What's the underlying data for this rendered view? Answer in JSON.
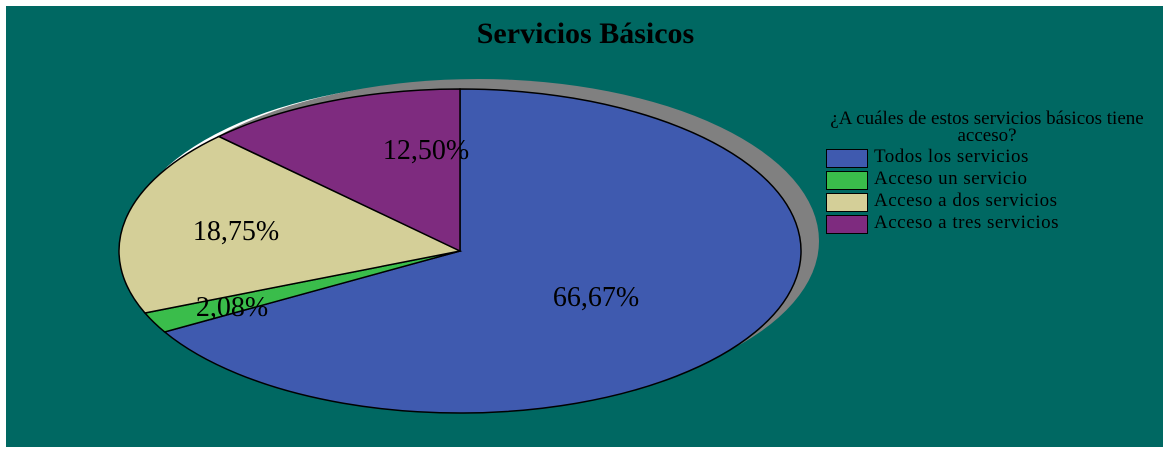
{
  "chart_data": {
    "type": "pie",
    "title": "Servicios Básicos",
    "legend_title": "¿A cuáles de estos servicios básicos tiene acceso?",
    "legend_position": "right",
    "slices": [
      {
        "label": "Todos los servicios",
        "value": 66.67,
        "display": "66,67%",
        "color": "#3f5aaf"
      },
      {
        "label": "Acceso un servicio",
        "value": 2.08,
        "display": "2,08%",
        "color": "#3abd4b"
      },
      {
        "label": "Acceso a dos servicios",
        "value": 18.75,
        "display": "18,75%",
        "color": "#d4cf98"
      },
      {
        "label": "Acceso a tres servicios",
        "value": 12.5,
        "display": "12,50%",
        "color": "#7e2b7f"
      }
    ]
  }
}
